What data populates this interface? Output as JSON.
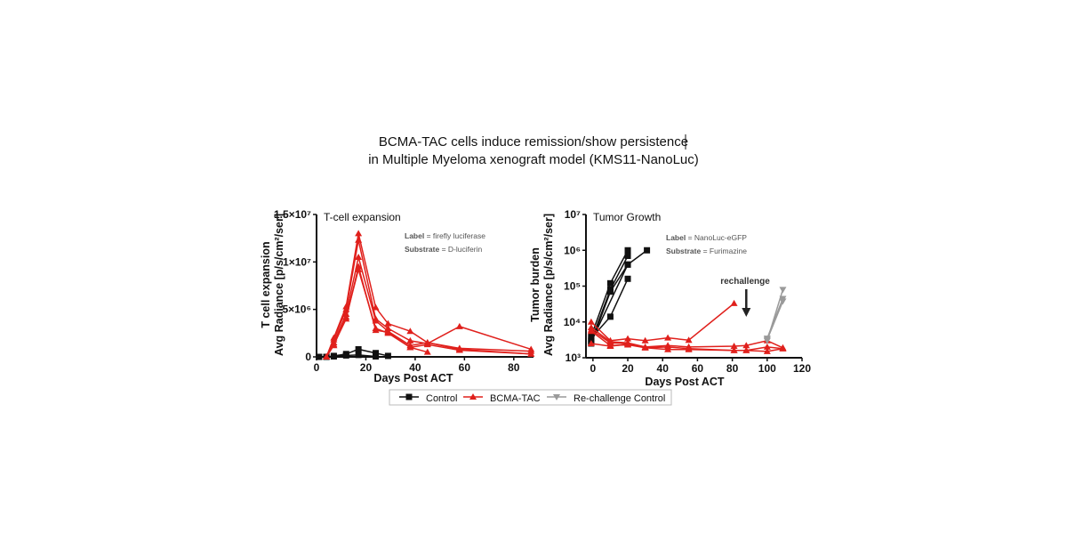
{
  "title_lines": [
    "BCMA-TAC cells induce remission/show persistence",
    "in Multiple Myeloma xenograft model (KMS11-NanoLuc)"
  ],
  "colors": {
    "Control": "#111111",
    "BCMA-TAC": "#e0201c",
    "Re-challenge Control": "#9a9a9a"
  },
  "legend": [
    "Control",
    "BCMA-TAC",
    "Re-challenge Control"
  ],
  "chart_data": [
    {
      "type": "line",
      "title": "T-cell expansion",
      "annotation": {
        "label_key": "Label",
        "label_value": "= firefly luciferase",
        "substrate_key": "Substrate",
        "substrate_value": "= D-luciferin"
      },
      "xlabel": "Days Post ACT",
      "ylabel_lines": [
        "T cell expansion",
        "Avg Radiance [p/s/cm²/ser]"
      ],
      "xlim": [
        0,
        88
      ],
      "ylim": [
        0,
        15000000
      ],
      "xticks": [
        0,
        20,
        40,
        60,
        80
      ],
      "yticks": [
        {
          "v": 0,
          "label": "0"
        },
        {
          "v": 5000000,
          "label": "5×10⁶"
        },
        {
          "v": 10000000,
          "label": "1×10⁷"
        },
        {
          "v": 15000000,
          "label": "1.5×10⁷"
        }
      ],
      "yscale": "linear",
      "series": [
        {
          "group": "Control",
          "x": [
            1,
            4,
            7,
            12,
            17,
            24,
            29
          ],
          "y": [
            0,
            0,
            100000,
            300000,
            800000,
            400000,
            100000
          ]
        },
        {
          "group": "Control",
          "x": [
            1,
            4,
            7,
            12,
            17,
            24
          ],
          "y": [
            0,
            0,
            50000,
            150000,
            200000,
            50000
          ]
        },
        {
          "group": "BCMA-TAC",
          "x": [
            4,
            7,
            12,
            17,
            24,
            29,
            38,
            45,
            58,
            87
          ],
          "y": [
            0,
            2000000,
            5300000,
            13000000,
            5200000,
            3500000,
            2700000,
            1500000,
            800000,
            300000
          ]
        },
        {
          "group": "BCMA-TAC",
          "x": [
            4,
            7,
            12,
            17,
            24,
            29,
            38,
            45,
            58,
            87
          ],
          "y": [
            0,
            1800000,
            5000000,
            12300000,
            4000000,
            3000000,
            1700000,
            1400000,
            3200000,
            800000
          ]
        },
        {
          "group": "BCMA-TAC",
          "x": [
            4,
            7,
            12,
            17,
            24,
            29,
            38,
            45,
            58,
            87
          ],
          "y": [
            0,
            1500000,
            4500000,
            10500000,
            3800000,
            2700000,
            1200000,
            1500000,
            900000,
            600000
          ]
        },
        {
          "group": "BCMA-TAC",
          "x": [
            4,
            7,
            12,
            17,
            24,
            29,
            38,
            45
          ],
          "y": [
            0,
            1300000,
            4000000,
            9500000,
            2800000,
            2600000,
            1000000,
            500000
          ]
        },
        {
          "group": "BCMA-TAC",
          "x": [
            4,
            7,
            12,
            17,
            24,
            29,
            38,
            45,
            58,
            87
          ],
          "y": [
            0,
            1200000,
            4200000,
            9200000,
            3000000,
            2500000,
            1000000,
            1300000,
            700000,
            300000
          ]
        }
      ]
    },
    {
      "type": "line",
      "title": "Tumor Growth",
      "annotation": {
        "label_key": "Label",
        "label_value": "= NanoLuc-eGFP",
        "substrate_key": "Substrate",
        "substrate_value": "= Furimazine",
        "arrow_text": "rechallenge",
        "arrow_day": 88
      },
      "xlabel": "Days Post ACT",
      "ylabel_lines": [
        "Tumor burden",
        "Avg Radiance [p/s/cm²/ser]"
      ],
      "xlim": [
        -4,
        120
      ],
      "ylim": [
        1000,
        10000000
      ],
      "xticks": [
        0,
        20,
        40,
        60,
        80,
        100,
        120
      ],
      "yticks": [
        {
          "v": 1000,
          "label": "10³"
        },
        {
          "v": 10000,
          "label": "10⁴"
        },
        {
          "v": 100000,
          "label": "10⁵"
        },
        {
          "v": 1000000,
          "label": "10⁶"
        },
        {
          "v": 10000000,
          "label": "10⁷"
        }
      ],
      "yscale": "log",
      "series": [
        {
          "group": "Control",
          "x": [
            -1,
            10,
            20
          ],
          "y": [
            4000,
            120000,
            1000000
          ]
        },
        {
          "group": "Control",
          "x": [
            -1,
            10,
            20
          ],
          "y": [
            3000,
            80000,
            700000
          ]
        },
        {
          "group": "Control",
          "x": [
            -1,
            10,
            20
          ],
          "y": [
            2500,
            70000,
            400000
          ]
        },
        {
          "group": "Control",
          "x": [
            -1,
            10,
            20
          ],
          "y": [
            3500,
            14000,
            160000
          ]
        },
        {
          "group": "Control",
          "x": [
            -1,
            20,
            31
          ],
          "y": [
            2800,
            400000,
            1000000
          ]
        },
        {
          "group": "BCMA-TAC",
          "x": [
            -1,
            10,
            20,
            30,
            43,
            55,
            81
          ],
          "y": [
            10000,
            3000,
            3400,
            3000,
            3600,
            3100,
            33000
          ]
        },
        {
          "group": "BCMA-TAC",
          "x": [
            -1,
            10,
            20,
            30,
            43,
            55,
            81,
            88,
            100,
            109
          ],
          "y": [
            7000,
            2800,
            2600,
            2000,
            2200,
            2000,
            2100,
            2200,
            3000,
            1900
          ]
        },
        {
          "group": "BCMA-TAC",
          "x": [
            -1,
            10,
            20,
            30,
            43,
            55,
            81,
            88,
            100,
            109
          ],
          "y": [
            6000,
            2600,
            2500,
            1900,
            2000,
            1800,
            1600,
            1600,
            2000,
            1800
          ]
        },
        {
          "group": "BCMA-TAC",
          "x": [
            -1,
            10,
            20,
            30,
            43,
            55,
            81,
            88,
            100,
            109
          ],
          "y": [
            5500,
            2200,
            2300,
            1900,
            1700,
            1700,
            1600,
            1600,
            1500,
            1800
          ]
        },
        {
          "group": "BCMA-TAC",
          "x": [
            -1,
            10,
            20
          ],
          "y": [
            2500,
            2100,
            2400
          ]
        },
        {
          "group": "Re-challenge Control",
          "x": [
            100,
            109
          ],
          "y": [
            3000,
            80000
          ]
        },
        {
          "group": "Re-challenge Control",
          "x": [
            100,
            109
          ],
          "y": [
            3500,
            45000
          ]
        },
        {
          "group": "Re-challenge Control",
          "x": [
            100,
            109
          ],
          "y": [
            3200,
            38000
          ]
        }
      ]
    }
  ]
}
